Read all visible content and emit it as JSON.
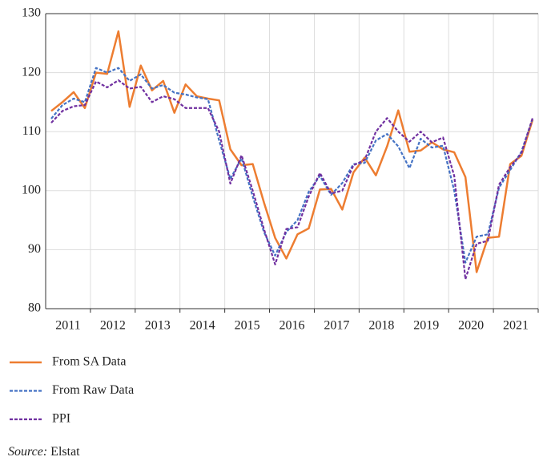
{
  "chart_data": {
    "type": "line",
    "x": [
      2011.125,
      2011.375,
      2011.625,
      2011.875,
      2012.125,
      2012.375,
      2012.625,
      2012.875,
      2013.125,
      2013.375,
      2013.625,
      2013.875,
      2014.125,
      2014.375,
      2014.625,
      2014.875,
      2015.125,
      2015.375,
      2015.625,
      2015.875,
      2016.125,
      2016.375,
      2016.625,
      2016.875,
      2017.125,
      2017.375,
      2017.625,
      2017.875,
      2018.125,
      2018.375,
      2018.625,
      2018.875,
      2019.125,
      2019.375,
      2019.625,
      2019.875,
      2020.125,
      2020.375,
      2020.625,
      2020.875,
      2021.125,
      2021.375,
      2021.625,
      2021.875
    ],
    "xlim": [
      2011,
      2022
    ],
    "xticks": [
      {
        "value": 2011.5,
        "label": "2011"
      },
      {
        "value": 2012.5,
        "label": "2012"
      },
      {
        "value": 2013.5,
        "label": "2013"
      },
      {
        "value": 2014.5,
        "label": "2014"
      },
      {
        "value": 2015.5,
        "label": "2015"
      },
      {
        "value": 2016.5,
        "label": "2016"
      },
      {
        "value": 2017.5,
        "label": "2017"
      },
      {
        "value": 2018.5,
        "label": "2018"
      },
      {
        "value": 2019.5,
        "label": "2019"
      },
      {
        "value": 2020.5,
        "label": "2020"
      },
      {
        "value": 2021.5,
        "label": "2021"
      }
    ],
    "ylim": [
      80,
      130
    ],
    "yticks": [
      80,
      90,
      100,
      110,
      120,
      130
    ],
    "grid": true,
    "series": [
      {
        "name": "From SA Data",
        "color": "#ed7d31",
        "dash": "solid",
        "values": [
          113.5,
          115,
          116.7,
          114,
          120,
          119.8,
          127,
          114.2,
          121.2,
          117,
          118.6,
          113.2,
          118,
          116,
          115.6,
          115.3,
          107,
          104.3,
          104.5,
          98,
          92,
          88.5,
          92.6,
          93.6,
          100.2,
          100.3,
          96.8,
          103.1,
          105.6,
          102.6,
          107.5,
          113.6,
          106.6,
          106.8,
          108.2,
          107,
          106.5,
          102.3,
          86.2,
          92,
          92.2,
          104.5,
          105.9,
          112
        ]
      },
      {
        "name": "From Raw Data",
        "color": "#4472c4",
        "dash": "dashed",
        "values": [
          112.2,
          114.5,
          115.6,
          115,
          120.8,
          120,
          120.8,
          118.6,
          119.7,
          117.3,
          117.9,
          116.6,
          116.3,
          115.8,
          115.5,
          108.5,
          102,
          105.5,
          99,
          93,
          89,
          93,
          95,
          99.8,
          102.5,
          99.3,
          101.3,
          104.5,
          104.7,
          108.5,
          109.6,
          107.5,
          103.8,
          108.8,
          107.3,
          107.6,
          100,
          87.8,
          92.2,
          92.6,
          100.5,
          103.5,
          106.6,
          112.2
        ]
      },
      {
        "name": "PPI",
        "color": "#7030a0",
        "dash": "dashed",
        "values": [
          111.5,
          113.5,
          114.3,
          114.5,
          118.5,
          117.5,
          118.7,
          117.3,
          117.6,
          115,
          116,
          115.5,
          114,
          114,
          114,
          110,
          101.2,
          106,
          100,
          93.5,
          87.5,
          93.5,
          93.8,
          99,
          103,
          99.5,
          100,
          104.3,
          105.2,
          110,
          112.3,
          110,
          108.3,
          110,
          108.2,
          109,
          102.5,
          85,
          91,
          91.5,
          101,
          104,
          106.3,
          112.3
        ]
      }
    ],
    "source_label": "Source:",
    "source": "Elstat"
  }
}
